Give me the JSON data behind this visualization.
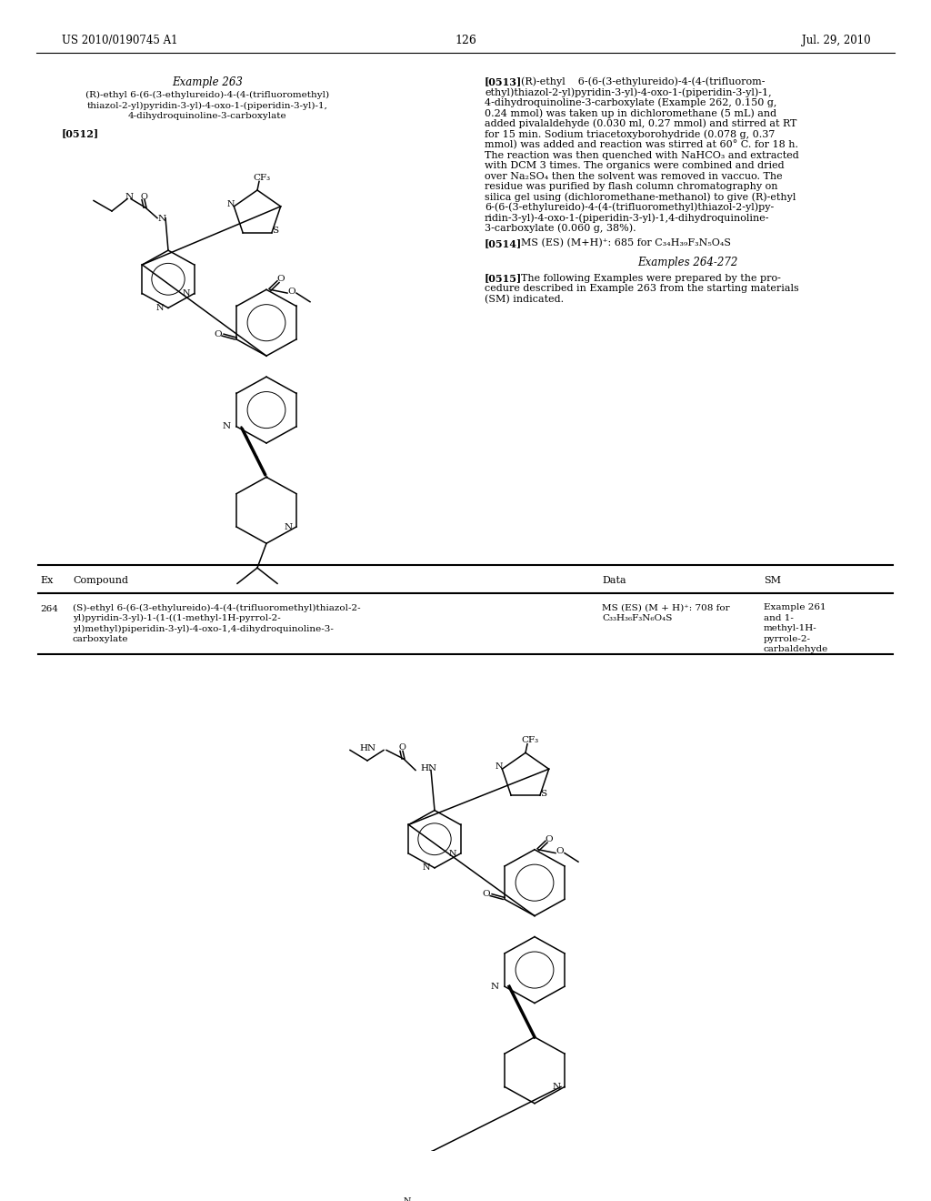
{
  "background_color": "#ffffff",
  "header_left": "US 2010/0190745 A1",
  "header_center": "126",
  "header_right": "Jul. 29, 2010",
  "example263_title": "Example 263",
  "example263_compound": [
    "(R)-ethyl 6-(6-(3-ethylureido)-4-(4-(trifluoromethyl)",
    "thiazol-2-yl)pyridin-3-yl)-4-oxo-1-(piperidin-3-yl)-1,",
    "4-dihydroquinoline-3-carboxylate"
  ],
  "tag_0512": "[0512]",
  "tag_0513": "[0513]",
  "text_0513_line1": "(R)-ethyl    6-(6-(3-ethylureido)-4-(4-(trifluorom-",
  "text_0513_rest": [
    "ethyl)thiazol-2-yl)pyridin-3-yl)-4-oxo-1-(piperidin-3-yl)-1,",
    "4-dihydroquinoline-3-carboxylate (Example 262, 0.150 g,",
    "0.24 mmol) was taken up in dichloromethane (5 mL) and",
    "added pivalaldehyde (0.030 ml, 0.27 mmol) and stirred at RT",
    "for 15 min. Sodium triacetoxyborohydride (0.078 g, 0.37",
    "mmol) was added and reaction was stirred at 60° C. for 18 h.",
    "The reaction was then quenched with NaHCO₃ and extracted",
    "with DCM 3 times. The organics were combined and dried",
    "over Na₂SO₄ then the solvent was removed in vaccuo. The",
    "residue was purified by flash column chromatography on",
    "silica gel using (dichloromethane-methanol) to give (R)-ethyl",
    "6-(6-(3-ethylureido)-4-(4-(trifluoromethyl)thiazol-2-yl)py-",
    "ridin-3-yl)-4-oxo-1-(piperidin-3-yl)-1,4-dihydroquinoline-",
    "3-carboxylate (0.060 g, 38%)."
  ],
  "tag_0514": "[0514]",
  "text_0514": "MS (ES) (M+H)⁺: 685 for C₃₄H₃₉F₃N₅O₄S",
  "examples_264_272": "Examples 264-272",
  "tag_0515": "[0515]",
  "text_0515": [
    "The following Examples were prepared by the pro-",
    "cedure described in Example 263 from the starting materials",
    "(SM) indicated."
  ],
  "table_headers": [
    "Ex",
    "Compound",
    "Data",
    "SM"
  ],
  "row264_ex": "264",
  "row264_compound": [
    "(S)-ethyl 6-(6-(3-ethylureido)-4-(4-(trifluoromethyl)thiazol-2-",
    "yl)pyridin-3-yl)-1-(1-((1-methyl-1H-pyrrol-2-",
    "yl)methyl)piperidin-3-yl)-4-oxo-1,4-dihydroquinoline-3-",
    "carboxylate"
  ],
  "row264_data": [
    "MS (ES) (M + H)⁺: 708 for",
    "C₃₃H₃₆F₃N₆O₄S"
  ],
  "row264_sm": [
    "Example 261",
    "and 1-",
    "methyl-1H-",
    "pyrrole-2-",
    "carbaldehyde"
  ]
}
